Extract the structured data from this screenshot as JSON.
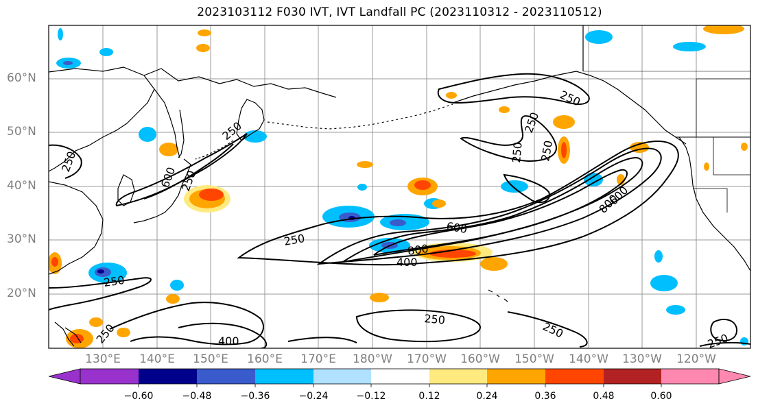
{
  "title": "2023103112 F030 IVT, IVT Landfall PC (2023110312 - 2023110512)",
  "latitude_labels": [
    "60°N",
    "50°N",
    "40°N",
    "30°N",
    "20°N"
  ],
  "longitude_labels": [
    "130°E",
    "140°E",
    "150°E",
    "160°E",
    "170°E",
    "180°W",
    "170°W",
    "160°W",
    "150°W",
    "140°W",
    "130°W",
    "120°W"
  ],
  "contour_labels": [
    "250",
    "250",
    "250",
    "250",
    "250",
    "250",
    "250",
    "250",
    "250",
    "250",
    "250",
    "250",
    "250",
    "400",
    "400",
    "600",
    "600",
    "600",
    "800",
    "800"
  ],
  "colorbar": {
    "ticks": [
      "−0.60",
      "−0.48",
      "−0.36",
      "−0.24",
      "−0.12",
      "0.12",
      "0.24",
      "0.36",
      "0.48",
      "0.60"
    ],
    "colors": [
      "#9932cc",
      "#00008b",
      "#3a5bcc",
      "#00bfff",
      "#b0e2ff",
      "#ffffff",
      "#ffea80",
      "#ffa500",
      "#ff4500",
      "#b22222",
      "#ff88b0"
    ]
  },
  "colors": {
    "contour": "#000000",
    "grid": "#999999",
    "coast": "#000000",
    "label": "#808080"
  }
}
